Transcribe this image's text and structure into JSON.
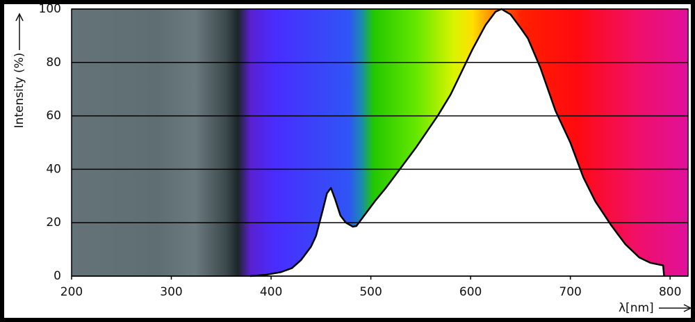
{
  "chart_data": {
    "type": "area",
    "ylabel": "Intensity (%)",
    "xlabel": "λ[nm]",
    "xlim": [
      200,
      818
    ],
    "ylim": [
      0,
      100
    ],
    "xticks": [
      200,
      300,
      400,
      500,
      600,
      700,
      800
    ],
    "yticks": [
      0,
      20,
      40,
      60,
      80,
      100
    ],
    "grid": true,
    "series": [
      {
        "color": "#000000",
        "x": [
          379,
          395,
          410,
          421,
          430,
          440,
          445,
          452,
          456,
          460,
          464,
          469.5,
          475,
          482,
          485.5,
          490,
          504,
          515,
          525,
          545,
          567,
          580,
          602,
          615,
          625,
          631,
          640,
          650,
          657.5,
          670,
          685,
          700,
          713,
          725,
          741,
          755,
          769,
          780,
          793,
          794
        ],
        "values": [
          0,
          0.5,
          1.5,
          3,
          6,
          11,
          15,
          25,
          31,
          33,
          29,
          22.7,
          20,
          18.5,
          18.75,
          21,
          28,
          33,
          38,
          48,
          60,
          68,
          85,
          94,
          99,
          100,
          98,
          93,
          89,
          78,
          62,
          50,
          37,
          28,
          19,
          12,
          7,
          5,
          4,
          0
        ]
      }
    ]
  }
}
